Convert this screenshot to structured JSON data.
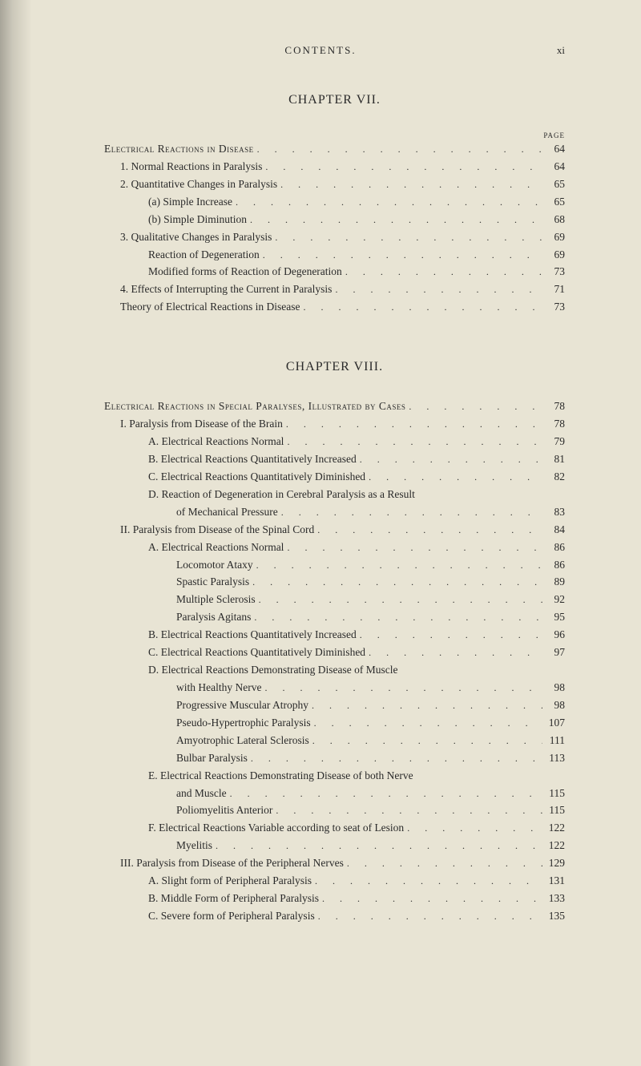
{
  "header": {
    "center": "CONTENTS.",
    "right": "xi"
  },
  "chapters": [
    {
      "title": "CHAPTER VII.",
      "page_label": "PAGE",
      "lines": [
        {
          "text": "Electrical Reactions in Disease",
          "page": "64",
          "indent": 0,
          "smallcaps": true
        },
        {
          "text": "1. Normal Reactions in Paralysis",
          "page": "64",
          "indent": 1
        },
        {
          "text": "2. Quantitative Changes in Paralysis",
          "page": "65",
          "indent": 1
        },
        {
          "text": "(a) Simple Increase",
          "page": "65",
          "indent": 2
        },
        {
          "text": "(b) Simple Diminution",
          "page": "68",
          "indent": 2
        },
        {
          "text": "3. Qualitative Changes in Paralysis",
          "page": "69",
          "indent": 1
        },
        {
          "text": "Reaction of Degeneration",
          "page": "69",
          "indent": 2
        },
        {
          "text": "Modified forms of Reaction of Degeneration",
          "page": "73",
          "indent": 2
        },
        {
          "text": "4. Effects of Interrupting the Current in Paralysis",
          "page": "71",
          "indent": 1
        },
        {
          "text": "Theory of Electrical Reactions in Disease",
          "page": "73",
          "indent": 1
        }
      ]
    },
    {
      "title": "CHAPTER VIII.",
      "page_label": "",
      "lines": [
        {
          "text": "Electrical Reactions in Special Paralyses, Illustrated by Cases",
          "page": "78",
          "indent": 0,
          "smallcaps": true
        },
        {
          "text": "I. Paralysis from Disease of the Brain",
          "page": "78",
          "indent": 1
        },
        {
          "text": "A. Electrical Reactions Normal",
          "page": "79",
          "indent": 2
        },
        {
          "text": "B. Electrical Reactions Quantitatively Increased",
          "page": "81",
          "indent": 2
        },
        {
          "text": "C. Electrical Reactions Quantitatively Diminished",
          "page": "82",
          "indent": 2
        },
        {
          "text": "D. Reaction of Degeneration in Cerebral Paralysis as a Result",
          "page": "",
          "indent": 2,
          "nodots": true
        },
        {
          "text": "of Mechanical Pressure",
          "page": "83",
          "indent": 3
        },
        {
          "text": "II. Paralysis from Disease of the Spinal Cord",
          "page": "84",
          "indent": 1
        },
        {
          "text": "A. Electrical Reactions Normal",
          "page": "86",
          "indent": 2
        },
        {
          "text": "Locomotor Ataxy",
          "page": "86",
          "indent": 3
        },
        {
          "text": "Spastic Paralysis",
          "page": "89",
          "indent": 3
        },
        {
          "text": "Multiple Sclerosis",
          "page": "92",
          "indent": 3
        },
        {
          "text": "Paralysis Agitans",
          "page": "95",
          "indent": 3
        },
        {
          "text": "B. Electrical Reactions Quantitatively Increased",
          "page": "96",
          "indent": 2
        },
        {
          "text": "C. Electrical Reactions Quantitatively Diminished",
          "page": "97",
          "indent": 2
        },
        {
          "text": "D. Electrical Reactions Demonstrating Disease of Muscle",
          "page": "",
          "indent": 2,
          "nodots": true
        },
        {
          "text": "with Healthy Nerve",
          "page": "98",
          "indent": 3
        },
        {
          "text": "Progressive Muscular Atrophy",
          "page": "98",
          "indent": 3
        },
        {
          "text": "Pseudo-Hypertrophic Paralysis",
          "page": "107",
          "indent": 3
        },
        {
          "text": "Amyotrophic Lateral Sclerosis",
          "page": "111",
          "indent": 3
        },
        {
          "text": "Bulbar Paralysis",
          "page": "113",
          "indent": 3
        },
        {
          "text": "E. Electrical Reactions Demonstrating Disease of both Nerve",
          "page": "",
          "indent": 2,
          "nodots": true
        },
        {
          "text": "and Muscle",
          "page": "115",
          "indent": 3
        },
        {
          "text": "Poliomyelitis Anterior",
          "page": "115",
          "indent": 3
        },
        {
          "text": "F. Electrical Reactions Variable according to seat of Lesion",
          "page": "122",
          "indent": 2
        },
        {
          "text": "Myelitis",
          "page": "122",
          "indent": 3
        },
        {
          "text": "III. Paralysis from Disease of the Peripheral Nerves",
          "page": "129",
          "indent": 1
        },
        {
          "text": "A. Slight form of Peripheral Paralysis",
          "page": "131",
          "indent": 2
        },
        {
          "text": "B. Middle Form of Peripheral Paralysis",
          "page": "133",
          "indent": 2
        },
        {
          "text": "C. Severe form of Peripheral Paralysis",
          "page": "135",
          "indent": 2
        }
      ]
    }
  ]
}
